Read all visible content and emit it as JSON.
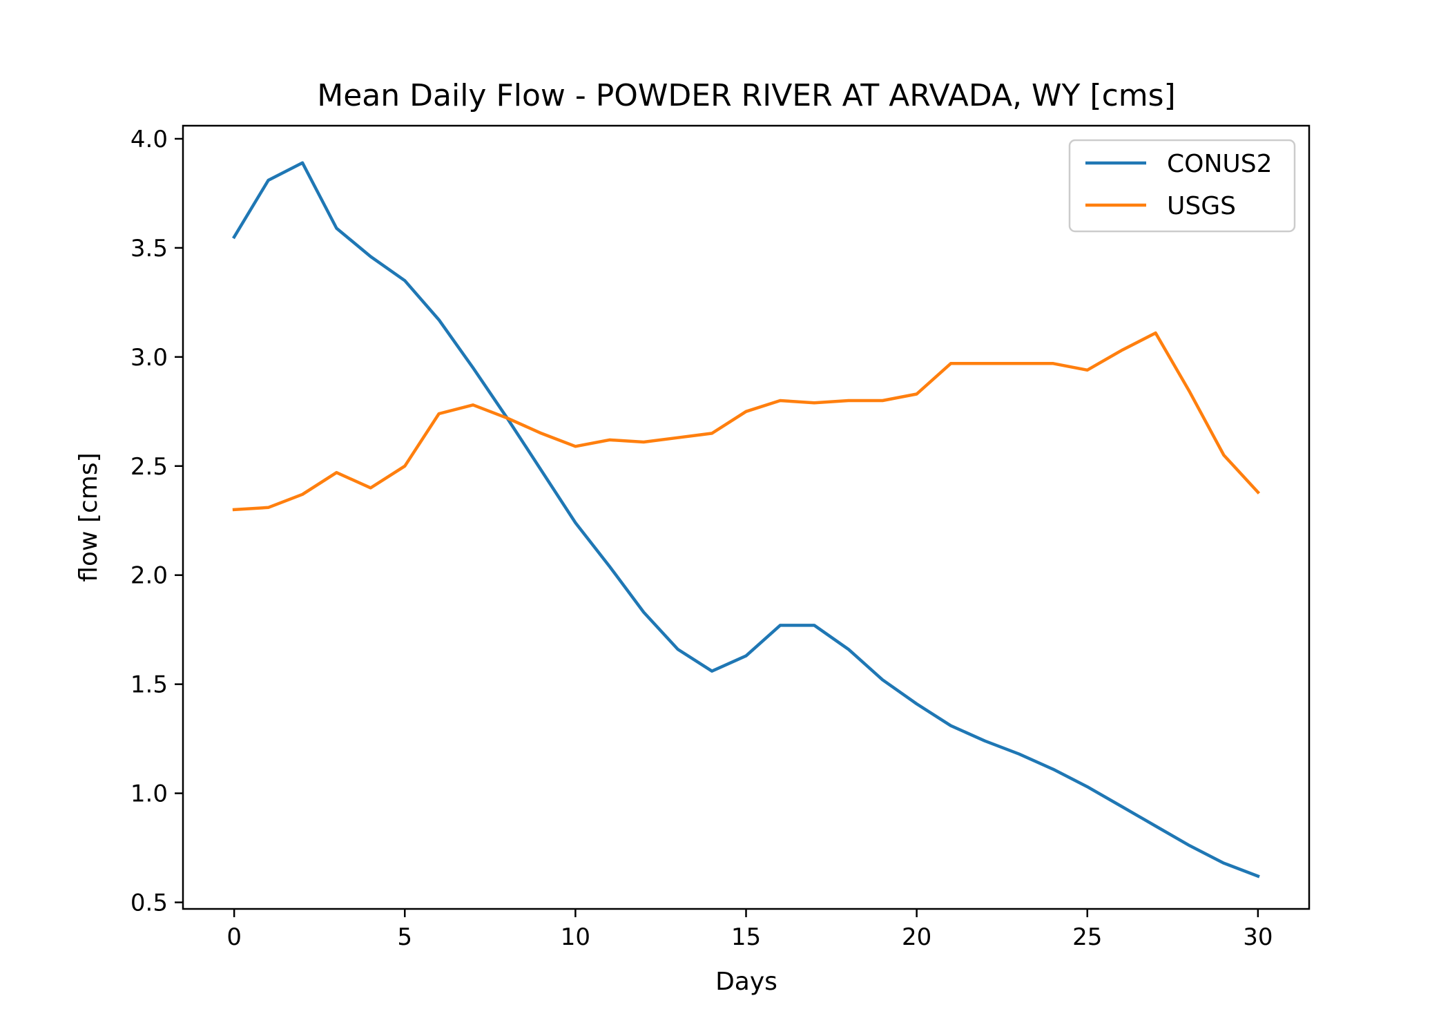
{
  "chart_data": {
    "type": "line",
    "title": "Mean Daily Flow - POWDER RIVER AT ARVADA, WY [cms]",
    "xlabel": "Days",
    "ylabel": "flow [cms]",
    "xlim": [
      -1.5,
      31.5
    ],
    "ylim": [
      0.47,
      4.06
    ],
    "xticks": [
      0,
      5,
      10,
      15,
      20,
      25,
      30
    ],
    "xtick_labels": [
      "0",
      "5",
      "10",
      "15",
      "20",
      "25",
      "30"
    ],
    "yticks": [
      0.5,
      1.0,
      1.5,
      2.0,
      2.5,
      3.0,
      3.5,
      4.0
    ],
    "ytick_labels": [
      "0.5",
      "1.0",
      "1.5",
      "2.0",
      "2.5",
      "3.0",
      "3.5",
      "4.0"
    ],
    "grid": false,
    "legend_position": "top-right",
    "x": [
      0,
      1,
      2,
      3,
      4,
      5,
      6,
      7,
      8,
      9,
      10,
      11,
      12,
      13,
      14,
      15,
      16,
      17,
      18,
      19,
      20,
      21,
      22,
      23,
      24,
      25,
      26,
      27,
      28,
      29,
      30
    ],
    "series": [
      {
        "name": "CONUS2",
        "color": "#1f77b4",
        "values": [
          3.55,
          3.81,
          3.89,
          3.59,
          3.46,
          3.35,
          3.17,
          2.95,
          2.72,
          2.48,
          2.24,
          2.04,
          1.83,
          1.66,
          1.56,
          1.63,
          1.77,
          1.77,
          1.66,
          1.52,
          1.41,
          1.31,
          1.24,
          1.18,
          1.11,
          1.03,
          0.94,
          0.85,
          0.76,
          0.68,
          0.62
        ]
      },
      {
        "name": "USGS",
        "color": "#ff7f0e",
        "values": [
          2.3,
          2.31,
          2.37,
          2.47,
          2.4,
          2.5,
          2.74,
          2.78,
          2.72,
          2.65,
          2.59,
          2.62,
          2.61,
          2.63,
          2.65,
          2.75,
          2.8,
          2.79,
          2.8,
          2.8,
          2.83,
          2.97,
          2.97,
          2.97,
          2.97,
          2.94,
          3.03,
          3.11,
          2.84,
          2.55,
          2.38
        ]
      }
    ]
  }
}
